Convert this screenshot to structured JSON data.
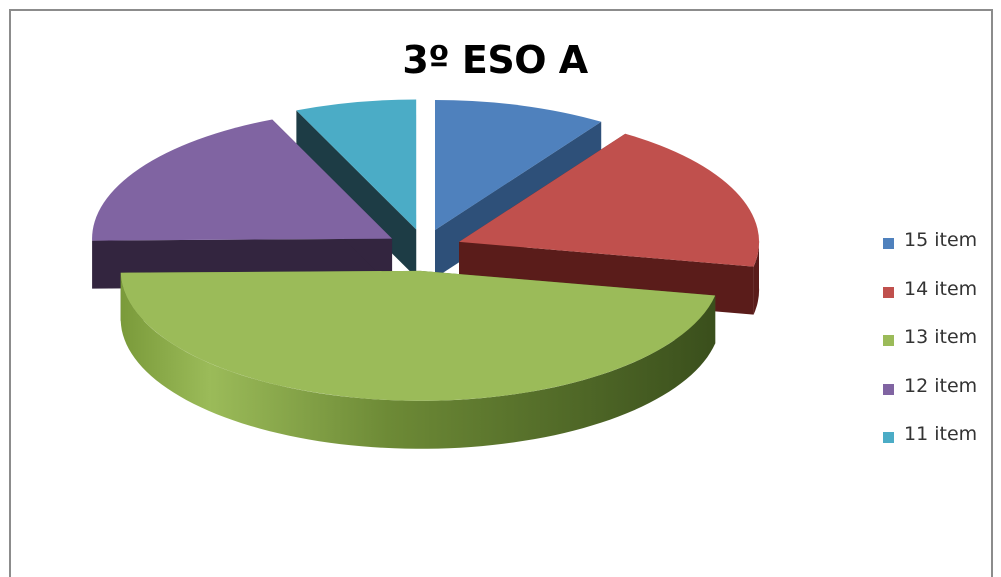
{
  "chart_data": {
    "type": "pie",
    "title": "3º ESO A",
    "exploded": true,
    "three_d": true,
    "legend_position": "right",
    "slices": [
      {
        "label": "15 item",
        "value": 2,
        "color": "#4F81BD",
        "side_color": "#2E5079"
      },
      {
        "label": "14 item",
        "value": 4,
        "color": "#C0504D",
        "side_color": "#5A1C1A"
      },
      {
        "label": "13 item",
        "value": 10,
        "color": "#9BBB59",
        "side_color": "#4A6129"
      },
      {
        "label": "12 item",
        "value": 4,
        "color": "#8064A2",
        "side_color": "#33253F"
      },
      {
        "label": "11 item",
        "value": 1.4,
        "color": "#4BACC6",
        "side_color": "#1D3C45"
      }
    ]
  }
}
